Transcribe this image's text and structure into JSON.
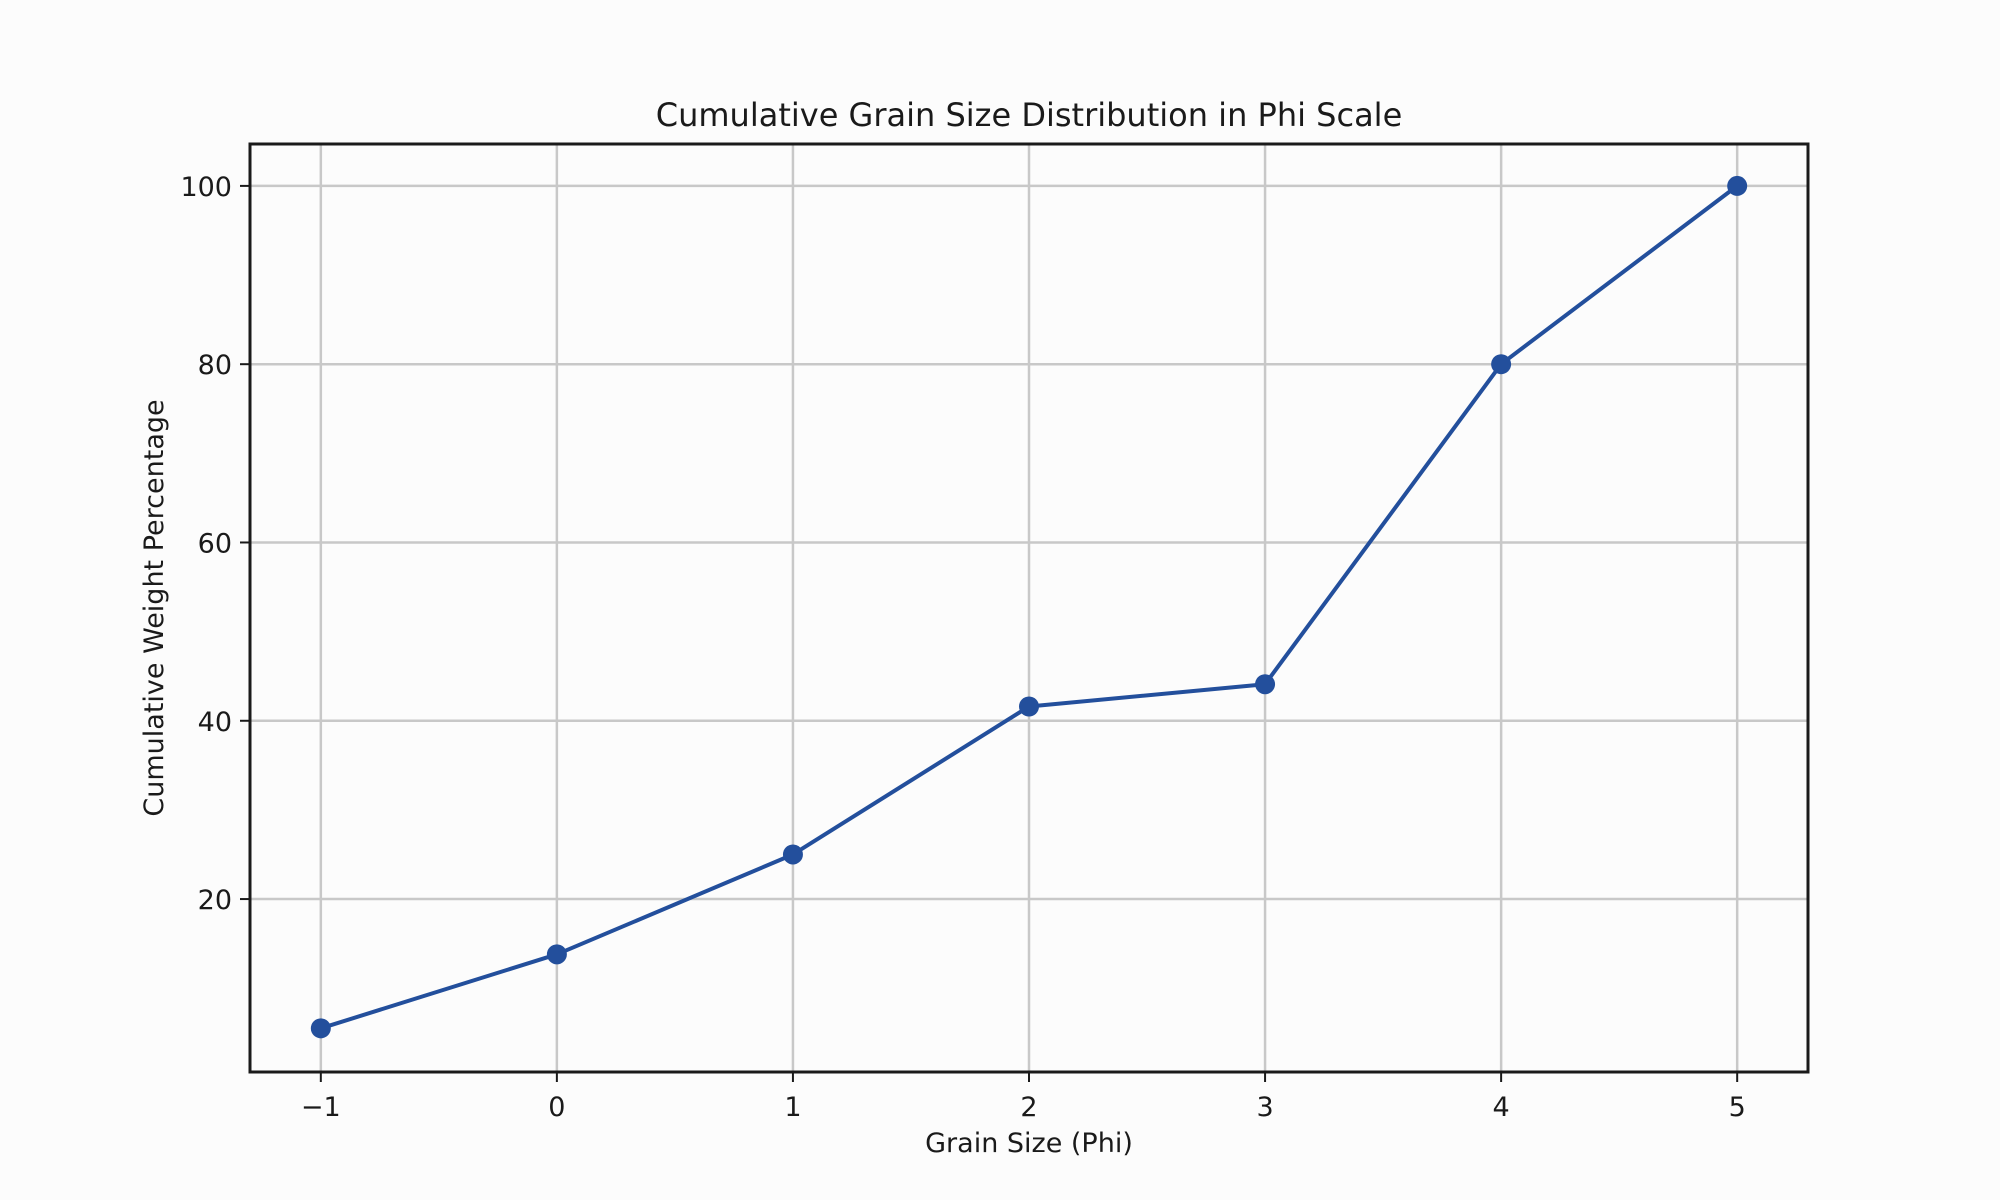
{
  "chart_data": {
    "type": "line",
    "title": "Cumulative Grain Size Distribution in Phi Scale",
    "xlabel": "Grain Size (Phi)",
    "ylabel": "Cumulative Weight Percentage",
    "xlim": [
      -1.3,
      5.3
    ],
    "ylim": [
      0.6,
      104.7
    ],
    "xticks": [
      -1,
      0,
      1,
      2,
      3,
      4,
      5
    ],
    "xtick_labels": [
      "−1",
      "0",
      "1",
      "2",
      "3",
      "4",
      "5"
    ],
    "yticks": [
      20,
      40,
      60,
      80,
      100
    ],
    "ytick_labels": [
      "20",
      "40",
      "60",
      "80",
      "100"
    ],
    "grid": true,
    "series": [
      {
        "x": [
          -1,
          0,
          1,
          2,
          3,
          4,
          5
        ],
        "y": [
          5.5,
          13.8,
          25.0,
          41.6,
          44.1,
          80.0,
          100.0
        ],
        "color": "#234f9c",
        "marker": "circle"
      }
    ]
  }
}
